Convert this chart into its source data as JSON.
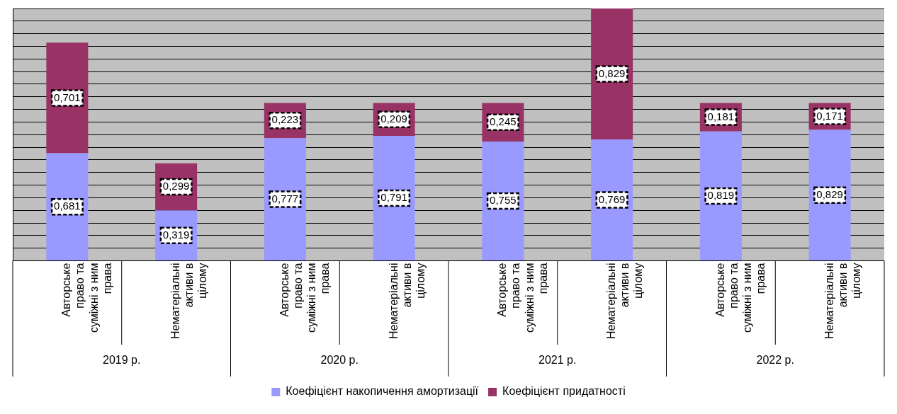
{
  "chart_data": {
    "type": "bar",
    "stacked": true,
    "data_labels": true,
    "grid": "y",
    "legend": "bottom",
    "categories": [
      "Авторське право та суміжні з ним права",
      "Нематеріальні активи в цілому",
      "Авторське право та суміжні з ним права",
      "Нематеріальні активи в цілому",
      "Авторське право та суміжні з ним права",
      "Нематеріальні активи в цілому",
      "Авторське право та суміжні з ним права",
      "Нематеріальні активи в цілому"
    ],
    "series": [
      {
        "name": "Коефіцієнт накопичення амортизації",
        "color": "#9999ff",
        "values": [
          0.681,
          0.319,
          0.777,
          0.791,
          0.755,
          0.769,
          0.819,
          0.829
        ],
        "value_labels": [
          "0,681",
          "0,319",
          "0,777",
          "0,791",
          "0,755",
          "0,769",
          "0,819",
          "0,829"
        ]
      },
      {
        "name": "Коефіцієнт придатності",
        "color": "#993366",
        "values": [
          0.701,
          0.299,
          0.223,
          0.209,
          0.245,
          0.829,
          0.181,
          0.171
        ],
        "value_labels": [
          "0,701",
          "0,299",
          "0,223",
          "0,209",
          "0,245",
          "0,829",
          "0,181",
          "0,171"
        ]
      }
    ],
    "annotations": [
      "2019 р.",
      "2020 р.",
      "2021 р.",
      "2022 р."
    ]
  }
}
